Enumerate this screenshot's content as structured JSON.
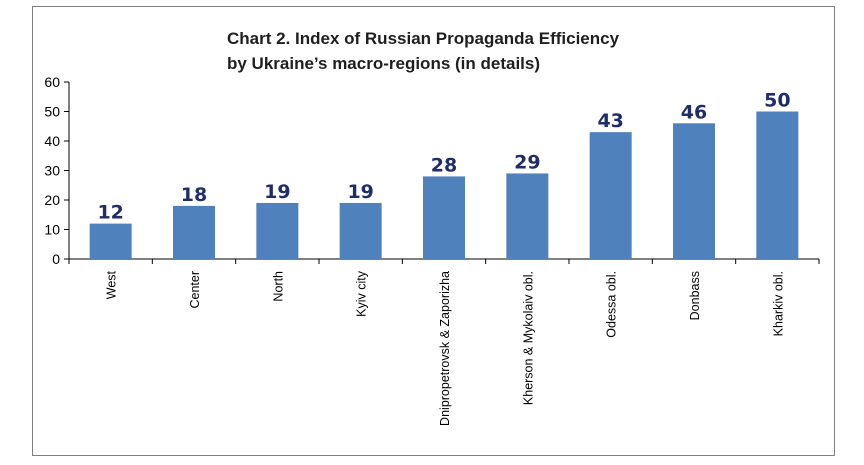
{
  "chart_data": {
    "type": "bar",
    "title_lines": [
      "Chart 2. Index of Russian Propaganda Efficiency",
      "by Ukraine’s macro-regions (in details)"
    ],
    "categories": [
      "West",
      "Center",
      "North",
      "Kyiv city",
      "Dnipropetrovsk & Zaporizha",
      "Kherson & Mykolaiv obl.",
      "Odessa obl.",
      "Donbass",
      "Kharkiv obl."
    ],
    "values": [
      12,
      18,
      19,
      19,
      28,
      29,
      43,
      46,
      50
    ],
    "data_labels": [
      "12",
      "18",
      "19",
      "19",
      "28",
      "29",
      "43",
      "46",
      "50"
    ],
    "ylim": [
      0,
      60
    ],
    "yticks": [
      "0",
      "10",
      "20",
      "30",
      "40",
      "50",
      "60"
    ],
    "xlabel": "",
    "ylabel": "",
    "grid": false,
    "legend": "none",
    "bar_color": "#4f81bd",
    "label_color": "#1f2d6b"
  }
}
